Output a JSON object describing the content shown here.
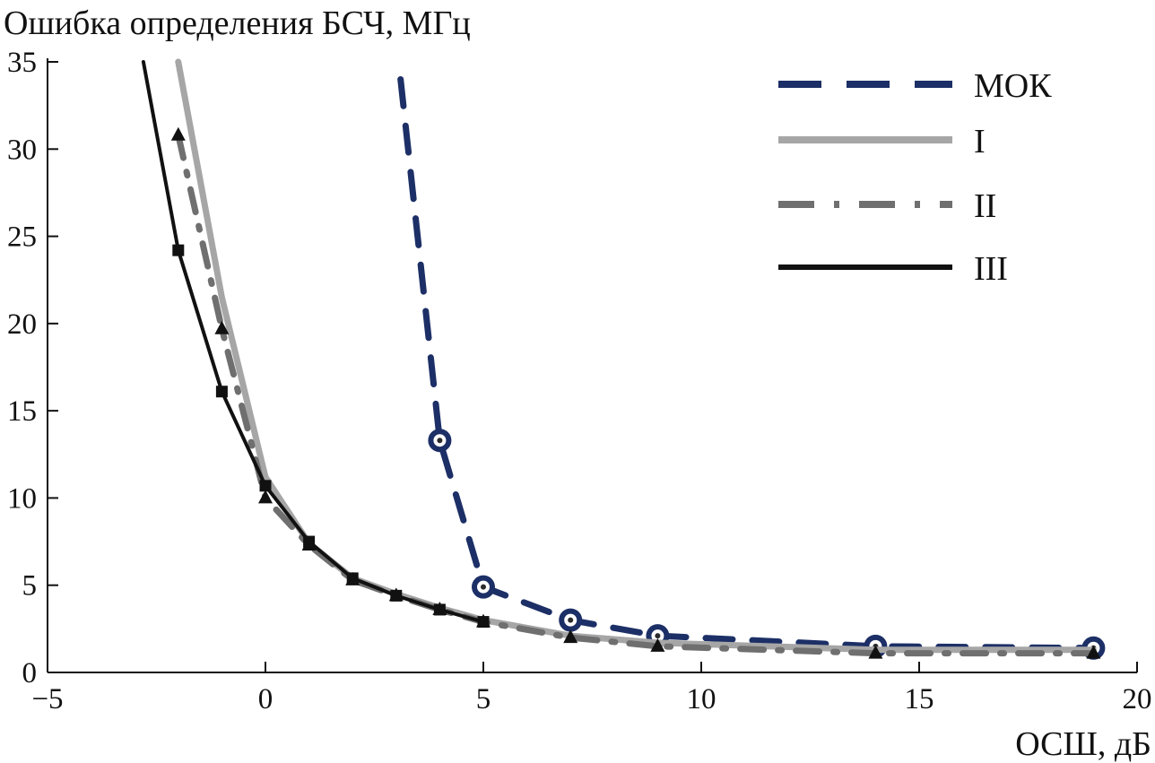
{
  "chart_data": {
    "type": "line",
    "title": "",
    "ylabel": "Ошибка определения БСЧ, МГц",
    "xlabel": "ОСШ, дБ",
    "xlim": [
      -5,
      20
    ],
    "ylim": [
      0,
      35
    ],
    "x_ticks": [
      -5,
      0,
      5,
      10,
      15,
      20
    ],
    "x_tick_labels": [
      "−5",
      "0",
      "5",
      "10",
      "15",
      "20"
    ],
    "y_ticks": [
      0,
      5,
      10,
      15,
      20,
      25,
      30,
      35
    ],
    "y_tick_labels": [
      "0",
      "5",
      "10",
      "15",
      "20",
      "25",
      "30",
      "35"
    ],
    "grid": false,
    "legend_position": "top-right",
    "series": [
      {
        "name": "МОК",
        "style": "dashed",
        "color": "#1c2f66",
        "marker": "circle",
        "x": [
          3.1,
          4,
          5,
          7,
          9,
          14,
          19
        ],
        "y": [
          34,
          13.3,
          4.9,
          3.0,
          2.1,
          1.5,
          1.4
        ],
        "marked": [
          false,
          true,
          true,
          true,
          true,
          true,
          true
        ]
      },
      {
        "name": "I",
        "style": "solid",
        "color": "#a6a6a6",
        "marker": "none",
        "x": [
          -2,
          -1,
          0,
          1,
          2,
          3,
          4,
          5,
          7,
          9,
          14,
          19
        ],
        "y": [
          35,
          21.5,
          11.2,
          7.4,
          5.4,
          4.5,
          3.7,
          3.0,
          2.1,
          1.7,
          1.3,
          1.3
        ],
        "marked": [
          false,
          false,
          false,
          false,
          false,
          false,
          false,
          false,
          false,
          false,
          false,
          false
        ]
      },
      {
        "name": "II",
        "style": "dashdot",
        "color": "#6f6f6f",
        "marker": "triangle",
        "x": [
          -2,
          -1,
          0,
          1,
          2,
          3,
          4,
          5,
          7,
          9,
          14,
          19
        ],
        "y": [
          30.8,
          19.7,
          10.0,
          7.3,
          5.3,
          4.4,
          3.6,
          2.9,
          2.0,
          1.5,
          1.1,
          1.1
        ],
        "marked": [
          true,
          true,
          true,
          true,
          true,
          true,
          true,
          true,
          true,
          true,
          true,
          true
        ]
      },
      {
        "name": "III",
        "style": "solid",
        "color": "#111111",
        "marker": "square",
        "x": [
          -2.8,
          -2,
          -1,
          0,
          1,
          2,
          3,
          4,
          5
        ],
        "y": [
          35,
          24.2,
          16.1,
          10.7,
          7.5,
          5.4,
          4.4,
          3.6,
          2.9
        ],
        "marked": [
          false,
          true,
          true,
          true,
          true,
          true,
          true,
          true,
          true
        ]
      }
    ]
  }
}
